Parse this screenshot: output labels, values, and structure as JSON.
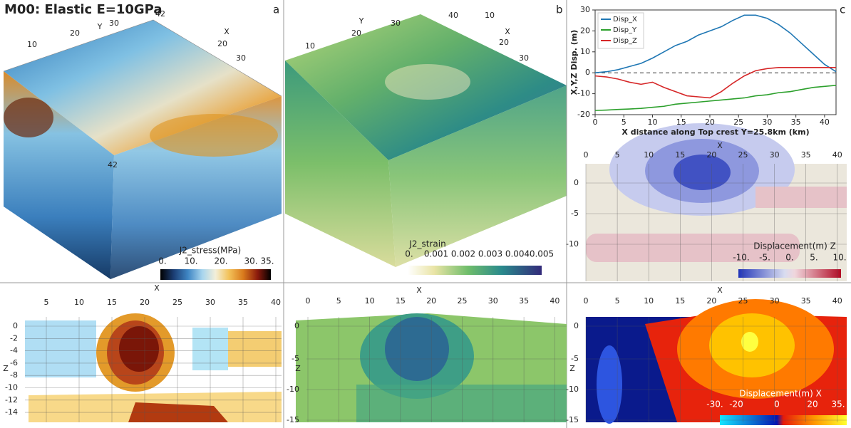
{
  "title": "M00: Elastic E=10GPa",
  "panel_a": {
    "label": "a",
    "y_axis": "Y",
    "x_axis": "X",
    "y_ticks": [
      "10",
      "20",
      "30",
      "42"
    ],
    "x_ticks": [
      "20",
      "30"
    ],
    "side_tick": "42",
    "colorbar": {
      "title": "J2_stress(MPa)",
      "labels": [
        "0.",
        "10.",
        "20.",
        "30.",
        "35."
      ]
    }
  },
  "panel_b": {
    "label": "b",
    "y_axis": "Y",
    "x_axis": "X",
    "y_ticks": [
      "10",
      "20",
      "30",
      "40"
    ],
    "x_ticks": [
      "10",
      "20",
      "30"
    ],
    "colorbar": {
      "title": "J2_strain",
      "labels": [
        "0.",
        "0.001",
        "0.002",
        "0.003",
        "0.004",
        "0.005"
      ]
    }
  },
  "panel_c_label": "c",
  "section_a": {
    "x_axis": "X",
    "z_axis": "Z",
    "x_ticks": [
      "5",
      "10",
      "15",
      "20",
      "25",
      "30",
      "35",
      "40"
    ],
    "z_ticks": [
      "0",
      "-2",
      "-4",
      "-6",
      "-8",
      "-10",
      "-12",
      "-14"
    ]
  },
  "section_b": {
    "x_axis": "X",
    "z_axis": "Z",
    "x_ticks": [
      "0",
      "5",
      "10",
      "15",
      "20",
      "25",
      "30",
      "35",
      "40"
    ],
    "z_ticks": [
      "0",
      "-5",
      "-10",
      "-15"
    ]
  },
  "section_cz": {
    "x_axis": "X",
    "x_ticks": [
      "0",
      "5",
      "10",
      "15",
      "20",
      "25",
      "30",
      "35",
      "40"
    ],
    "z_ticks": [
      "0",
      "-5",
      "-10"
    ],
    "colorbar": {
      "title": "Displacement(m) Z",
      "labels": [
        "-10.",
        "-5.",
        "0.",
        "5.",
        "10."
      ]
    }
  },
  "section_cx": {
    "x_axis": "X",
    "z_axis": "Z",
    "x_ticks": [
      "0",
      "5",
      "10",
      "15",
      "20",
      "25",
      "30",
      "35",
      "40"
    ],
    "z_ticks": [
      "0",
      "-5",
      "-10",
      "-15"
    ],
    "colorbar": {
      "title": "Displacement(m) X",
      "labels": [
        "-30.",
        "-20",
        "0",
        "20",
        "35."
      ]
    }
  },
  "chart_data": {
    "type": "line",
    "xlabel": "X distance along Top crest Y=25.8km (km)",
    "ylabel": "X,Y,Z Disp. (m)",
    "x": [
      0,
      2,
      4,
      6,
      8,
      10,
      12,
      14,
      16,
      18,
      20,
      22,
      24,
      26,
      28,
      30,
      32,
      34,
      36,
      38,
      40,
      42
    ],
    "series": [
      {
        "name": "Disp_X",
        "color": "#1f77b4",
        "values": [
          0,
          0.5,
          1.5,
          3,
          4.5,
          7,
          10,
          13,
          15,
          18,
          20,
          22,
          25,
          27.5,
          27.5,
          26,
          23,
          19,
          14,
          9,
          4,
          0.5
        ]
      },
      {
        "name": "Disp_Y",
        "color": "#2ca02c",
        "values": [
          -18,
          -17.8,
          -17.5,
          -17.3,
          -17,
          -16.5,
          -16,
          -15,
          -14.5,
          -14,
          -13.5,
          -13,
          -12.5,
          -12,
          -11,
          -10.5,
          -9.5,
          -9,
          -8,
          -7,
          -6.5,
          -6
        ]
      },
      {
        "name": "Disp_Z",
        "color": "#d62728",
        "values": [
          -1.5,
          -2,
          -3,
          -4.5,
          -5.5,
          -4.5,
          -7,
          -9,
          -11,
          -11.5,
          -12,
          -9,
          -5,
          -1.5,
          1,
          2,
          2.5,
          2.5,
          2.5,
          2.5,
          2.5,
          2.5
        ]
      }
    ],
    "hline": 0,
    "xlim": [
      0,
      42
    ],
    "ylim": [
      -20,
      30
    ],
    "xticks": [
      0,
      5,
      10,
      15,
      20,
      25,
      30,
      35,
      40
    ],
    "yticks": [
      -20,
      -10,
      0,
      10,
      20,
      30
    ]
  }
}
